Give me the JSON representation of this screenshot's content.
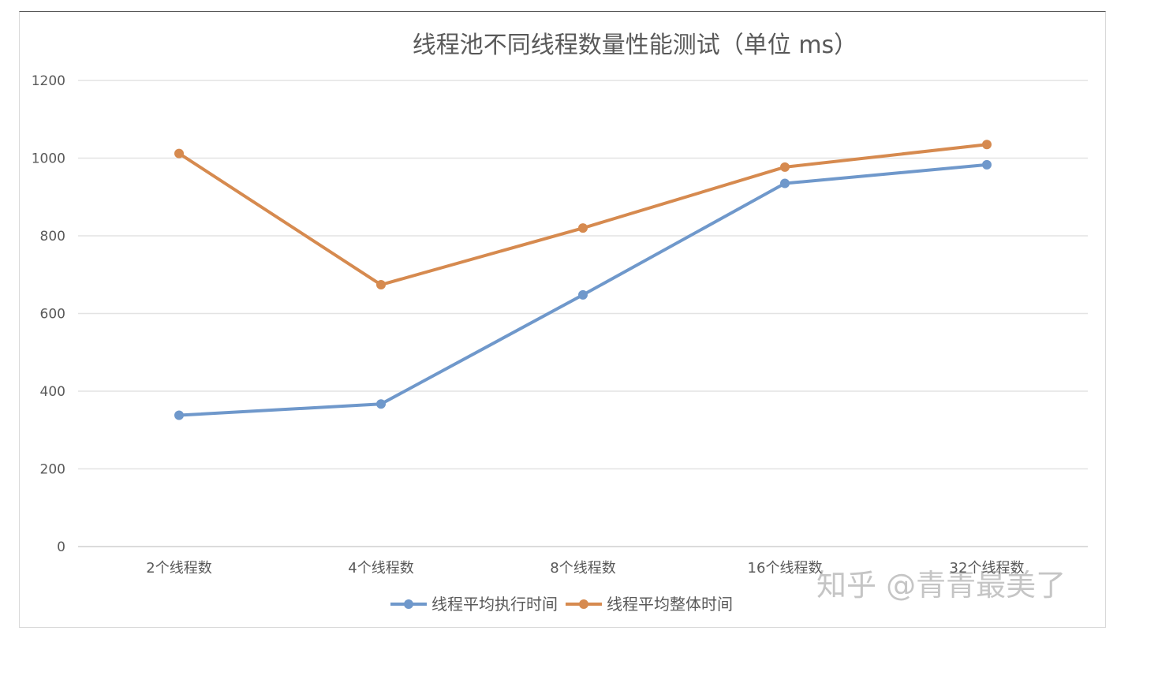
{
  "chart_data": {
    "type": "line",
    "title": "线程池不同线程数量性能测试（单位 ms）",
    "categories": [
      "2个线程数",
      "4个线程数",
      "8个线程数",
      "16个线程数",
      "32个线程数"
    ],
    "ylim": [
      0,
      1200
    ],
    "yticks": [
      0,
      200,
      400,
      600,
      800,
      1000,
      1200
    ],
    "grid": true,
    "legend_position": "bottom",
    "series": [
      {
        "name": "线程平均执行时间",
        "color": "#6f98cb",
        "values": [
          338,
          367,
          648,
          935,
          983
        ]
      },
      {
        "name": "线程平均整体时间",
        "color": "#d68a4f",
        "values": [
          1012,
          674,
          820,
          977,
          1035
        ]
      }
    ]
  },
  "watermark": "知乎 @青青最美了"
}
